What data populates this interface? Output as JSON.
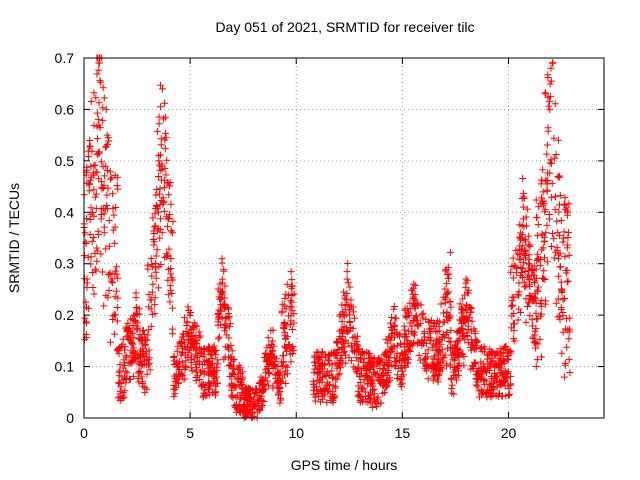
{
  "chart_data": {
    "type": "scatter",
    "title": "Day 051 of 2021, SRMTID for receiver tilc",
    "xlabel": "GPS time / hours",
    "ylabel": "SRMTID / TECUs",
    "xlim": [
      0,
      24.5
    ],
    "ylim": [
      0,
      0.7
    ],
    "x_ticks": [
      "0",
      "5",
      "10",
      "15",
      "20"
    ],
    "y_ticks": [
      "0",
      "0.1",
      "0.2",
      "0.3",
      "0.4",
      "0.5",
      "0.6",
      "0.7"
    ],
    "grid": true,
    "marker": "plus",
    "color": "#ff0000",
    "segments": [
      {
        "x_start": 0.0,
        "x_end": 1.6,
        "level": 0.3,
        "spread": 0.18,
        "peak_x": 0.7,
        "peak_y": 0.69
      },
      {
        "x_start": 1.6,
        "x_end": 3.0,
        "level": 0.09,
        "spread": 0.06,
        "peak_x": 2.4,
        "peak_y": 0.2
      },
      {
        "x_start": 3.0,
        "x_end": 4.2,
        "level": 0.2,
        "spread": 0.12,
        "peak_x": 3.7,
        "peak_y": 0.64
      },
      {
        "x_start": 4.2,
        "x_end": 6.3,
        "level": 0.09,
        "spread": 0.05,
        "peak_x": 5.0,
        "peak_y": 0.2
      },
      {
        "x_start": 6.3,
        "x_end": 7.5,
        "level": 0.06,
        "spread": 0.05,
        "peak_x": 6.5,
        "peak_y": 0.31
      },
      {
        "x_start": 7.5,
        "x_end": 9.3,
        "level": 0.03,
        "spread": 0.03,
        "peak_x": 8.8,
        "peak_y": 0.17
      },
      {
        "x_start": 9.3,
        "x_end": 9.9,
        "level": 0.12,
        "spread": 0.08,
        "peak_x": 9.8,
        "peak_y": 0.24
      },
      {
        "x_start": 10.8,
        "x_end": 13.5,
        "level": 0.08,
        "spread": 0.05,
        "peak_x": 12.4,
        "peak_y": 0.27
      },
      {
        "x_start": 13.5,
        "x_end": 15.0,
        "level": 0.07,
        "spread": 0.05,
        "peak_x": 14.6,
        "peak_y": 0.18
      },
      {
        "x_start": 15.0,
        "x_end": 16.8,
        "level": 0.13,
        "spread": 0.06,
        "peak_x": 15.6,
        "peak_y": 0.24
      },
      {
        "x_start": 16.8,
        "x_end": 17.3,
        "level": 0.1,
        "spread": 0.08,
        "peak_x": 17.2,
        "peak_y": 0.28
      },
      {
        "x_start": 17.3,
        "x_end": 20.1,
        "level": 0.09,
        "spread": 0.05,
        "peak_x": 18.0,
        "peak_y": 0.27
      },
      {
        "x_start": 20.1,
        "x_end": 21.3,
        "level": 0.2,
        "spread": 0.09,
        "peak_x": 20.7,
        "peak_y": 0.41
      },
      {
        "x_start": 21.3,
        "x_end": 22.9,
        "level": 0.25,
        "spread": 0.18,
        "peak_x": 22.0,
        "peak_y": 0.68
      }
    ]
  }
}
